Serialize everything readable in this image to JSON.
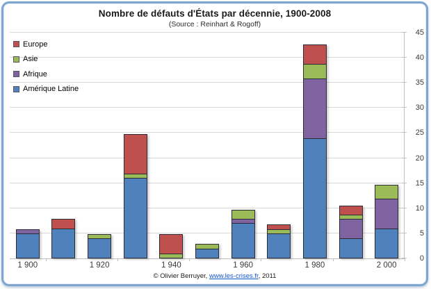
{
  "chart": {
    "title": "Nombre de défauts d'États par décennie, 1900-2008",
    "subtitle": "(Source : Reinhart & Rogoff)",
    "footer": {
      "prefix": "© Olivier Berruyer, ",
      "link": "www.les-crises.fr",
      "suffix": ",  2011"
    }
  },
  "chart_data": {
    "type": "bar",
    "stacked": true,
    "title": "Nombre de défauts d'États par décennie, 1900-2008",
    "subtitle": "(Source : Reinhart & Rogoff)",
    "categories": [
      "1900",
      "1910",
      "1920",
      "1930",
      "1940",
      "1950",
      "1960",
      "1970",
      "1980",
      "1990",
      "2000"
    ],
    "x_tick_labels": [
      "1 900",
      "1 920",
      "1 940",
      "1 960",
      "1 980",
      "2 000"
    ],
    "labeled_category_indices": [
      0,
      2,
      4,
      6,
      8,
      10
    ],
    "series": [
      {
        "name": "Amérique Latine",
        "color": "#4F81BD",
        "values": [
          5,
          6,
          4,
          16,
          0,
          2,
          7,
          5,
          24,
          4,
          6
        ]
      },
      {
        "name": "Afrique",
        "color": "#8064A2",
        "values": [
          1,
          0,
          0,
          0,
          0,
          0,
          1,
          0,
          12,
          4,
          6
        ]
      },
      {
        "name": "Asie",
        "color": "#9BBB59",
        "values": [
          0,
          0,
          1,
          1,
          1,
          1,
          2,
          1,
          3,
          1,
          3
        ]
      },
      {
        "name": "Europe",
        "color": "#C0504D",
        "values": [
          0,
          2,
          0,
          8,
          4,
          0,
          0,
          1,
          4,
          2,
          0
        ]
      }
    ],
    "totals": [
      6,
      8,
      5,
      25,
      5,
      3,
      10,
      7,
      43,
      11,
      15
    ],
    "legend": [
      {
        "label": "Europe",
        "color": "#C0504D"
      },
      {
        "label": "Asie",
        "color": "#9BBB59"
      },
      {
        "label": "Afrique",
        "color": "#8064A2"
      },
      {
        "label": "Amérique Latine",
        "color": "#4F81BD"
      }
    ],
    "ylim": [
      0,
      45
    ],
    "ystep": 5,
    "grid": true,
    "legend_position": "top-left-overlay",
    "bar_border_color": "#2B2B36",
    "gridline_color": "#D9D9D9",
    "frame_border_color": "#7EA6D2"
  }
}
